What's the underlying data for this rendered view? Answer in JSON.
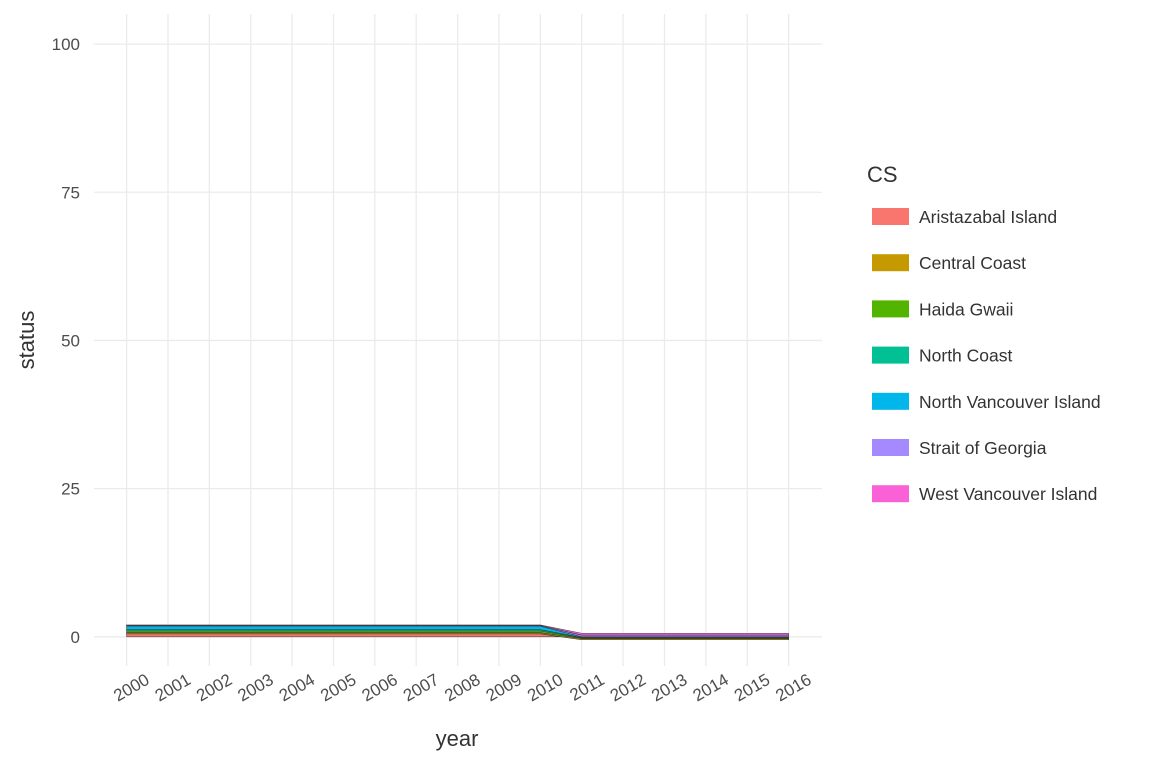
{
  "chart_data": {
    "type": "area",
    "stacked": true,
    "title": "",
    "xlabel": "year",
    "ylabel": "status",
    "x": [
      2000,
      2001,
      2002,
      2003,
      2004,
      2005,
      2006,
      2007,
      2008,
      2009,
      2010,
      2011,
      2012,
      2013,
      2014,
      2015,
      2016
    ],
    "x_tick_labels": [
      "2000",
      "2001",
      "2002",
      "2003",
      "2004",
      "2005",
      "2006",
      "2007",
      "2008",
      "2009",
      "2010",
      "2011",
      "2012",
      "2013",
      "2014",
      "2015",
      "2016"
    ],
    "ylim": [
      -5,
      105
    ],
    "y_ticks": [
      0,
      25,
      50,
      75,
      100
    ],
    "y_tick_labels": [
      "0",
      "25",
      "50",
      "75",
      "100"
    ],
    "grid": true,
    "legend_title": "CS",
    "legend_position": "right",
    "series": [
      {
        "name": "Aristazabal Island",
        "color": "#F8766D",
        "values": [
          0.5,
          0.5,
          0.5,
          0.5,
          0.5,
          0.5,
          0.5,
          0.5,
          0.5,
          0.5,
          0.5,
          -0.5,
          -0.5,
          -0.5,
          -0.5,
          -0.5,
          -0.5
        ]
      },
      {
        "name": "Central Coast",
        "color": "#C49A00",
        "values": [
          0.2,
          0.2,
          0.2,
          0.2,
          0.2,
          0.2,
          0.2,
          0.2,
          0.2,
          0.2,
          0.2,
          0.2,
          0.2,
          0.2,
          0.2,
          0.2,
          0.2
        ]
      },
      {
        "name": "Haida Gwaii",
        "color": "#53B400",
        "values": [
          0.3,
          0.3,
          0.3,
          0.3,
          0.3,
          0.3,
          0.3,
          0.3,
          0.3,
          0.3,
          0.3,
          0.1,
          0.1,
          0.1,
          0.1,
          0.1,
          0.1
        ]
      },
      {
        "name": "North Coast",
        "color": "#00C094",
        "values": [
          0.2,
          0.2,
          0.2,
          0.2,
          0.2,
          0.2,
          0.2,
          0.2,
          0.2,
          0.2,
          0.2,
          0.1,
          0.1,
          0.1,
          0.1,
          0.1,
          0.1
        ]
      },
      {
        "name": "North Vancouver Island",
        "color": "#00B6EB",
        "values": [
          0.6,
          0.6,
          0.6,
          0.6,
          0.6,
          0.6,
          0.6,
          0.6,
          0.6,
          0.6,
          0.6,
          0.1,
          0.1,
          0.1,
          0.1,
          0.1,
          0.1
        ]
      },
      {
        "name": "Strait of Georgia",
        "color": "#A58AFF",
        "values": [
          0.1,
          0.1,
          0.1,
          0.1,
          0.1,
          0.1,
          0.1,
          0.1,
          0.1,
          0.1,
          0.1,
          0.3,
          0.3,
          0.3,
          0.3,
          0.3,
          0.3
        ]
      },
      {
        "name": "West Vancouver Island",
        "color": "#FB61D7",
        "values": [
          0.1,
          0.1,
          0.1,
          0.1,
          0.1,
          0.1,
          0.1,
          0.1,
          0.1,
          0.1,
          0.1,
          0.3,
          0.3,
          0.3,
          0.3,
          0.3,
          0.3
        ]
      }
    ]
  }
}
